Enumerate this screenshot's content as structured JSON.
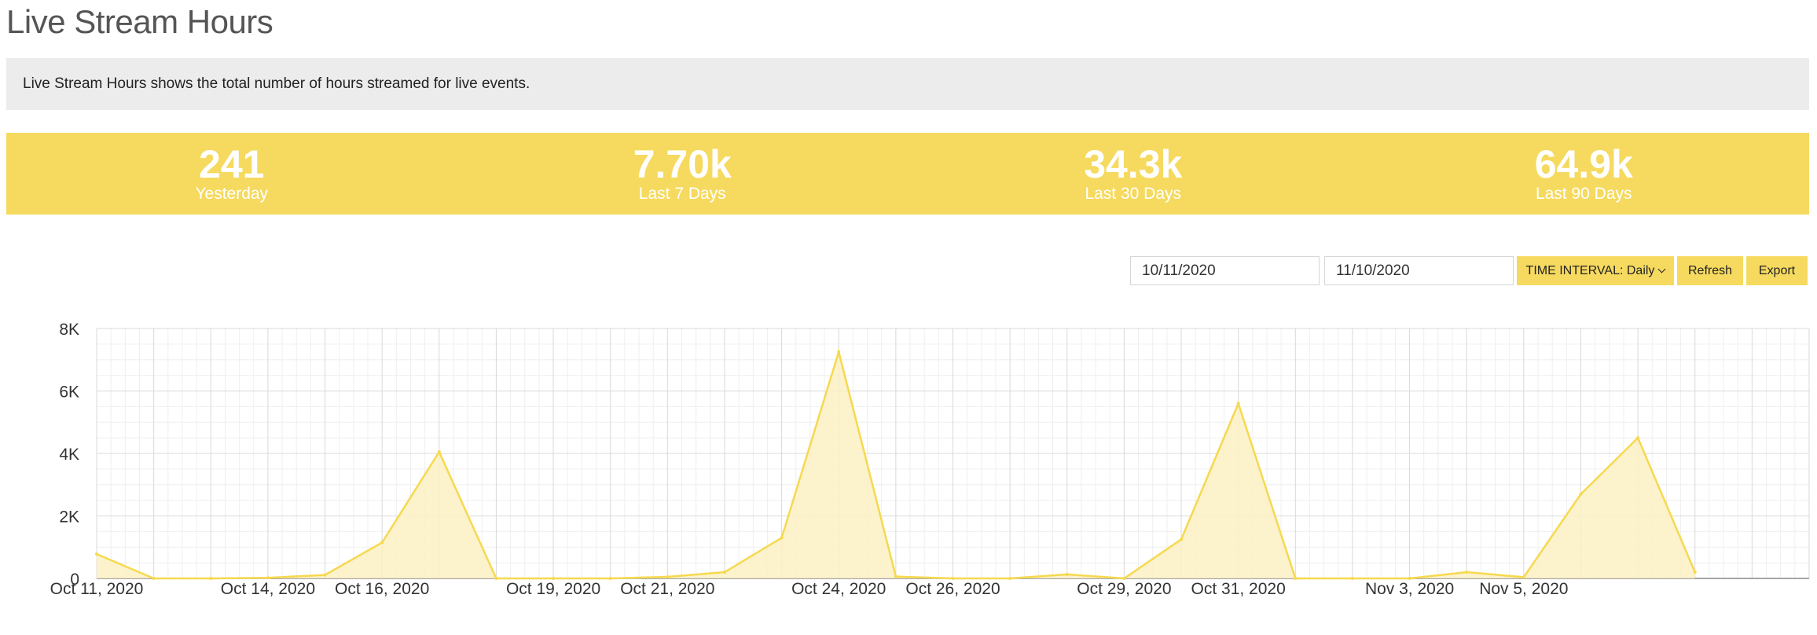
{
  "page": {
    "title": "Live Stream Hours",
    "description": "Live Stream Hours shows the total number of hours streamed for live events."
  },
  "stats": [
    {
      "value": "241",
      "label": "Yesterday"
    },
    {
      "value": "7.70k",
      "label": "Last 7 Days"
    },
    {
      "value": "34.3k",
      "label": "Last 30 Days"
    },
    {
      "value": "64.9k",
      "label": "Last 90 Days"
    }
  ],
  "controls": {
    "start_date": "10/11/2020",
    "end_date": "11/10/2020",
    "interval_label": "TIME INTERVAL: Daily",
    "refresh_label": "Refresh",
    "export_label": "Export"
  },
  "colors": {
    "accent": "#f6da5f",
    "line": "#f6d94e",
    "fill": "#fbf0c3"
  },
  "chart_data": {
    "type": "area",
    "title": "",
    "xlabel": "",
    "ylabel": "",
    "ylim": [
      0,
      8000
    ],
    "yticks": [
      {
        "value": 0,
        "label": "0"
      },
      {
        "value": 2000,
        "label": "2K"
      },
      {
        "value": 4000,
        "label": "4K"
      },
      {
        "value": 6000,
        "label": "6K"
      },
      {
        "value": 8000,
        "label": "8K"
      }
    ],
    "xlim": [
      "2020-10-11",
      "2020-11-10"
    ],
    "xticks": [
      {
        "date": "2020-10-11",
        "label": "Oct 11, 2020"
      },
      {
        "date": "2020-10-14",
        "label": "Oct 14, 2020"
      },
      {
        "date": "2020-10-16",
        "label": "Oct 16, 2020"
      },
      {
        "date": "2020-10-19",
        "label": "Oct 19, 2020"
      },
      {
        "date": "2020-10-21",
        "label": "Oct 21, 2020"
      },
      {
        "date": "2020-10-24",
        "label": "Oct 24, 2020"
      },
      {
        "date": "2020-10-26",
        "label": "Oct 26, 2020"
      },
      {
        "date": "2020-10-29",
        "label": "Oct 29, 2020"
      },
      {
        "date": "2020-10-31",
        "label": "Oct 31, 2020"
      },
      {
        "date": "2020-11-03",
        "label": "Nov 3, 2020"
      },
      {
        "date": "2020-11-05",
        "label": "Nov 5, 2020"
      }
    ],
    "grid": true,
    "legend": "none",
    "x": [
      "2020-10-11",
      "2020-10-12",
      "2020-10-13",
      "2020-10-14",
      "2020-10-15",
      "2020-10-16",
      "2020-10-17",
      "2020-10-18",
      "2020-10-19",
      "2020-10-20",
      "2020-10-21",
      "2020-10-22",
      "2020-10-23",
      "2020-10-24",
      "2020-10-25",
      "2020-10-26",
      "2020-10-27",
      "2020-10-28",
      "2020-10-29",
      "2020-10-30",
      "2020-10-31",
      "2020-11-01",
      "2020-11-02",
      "2020-11-03",
      "2020-11-04",
      "2020-11-05",
      "2020-11-06",
      "2020-11-07",
      "2020-11-08"
    ],
    "values": [
      780,
      0,
      0,
      20,
      110,
      1150,
      4050,
      0,
      0,
      0,
      50,
      200,
      1300,
      7250,
      60,
      0,
      0,
      130,
      0,
      1250,
      5600,
      0,
      0,
      0,
      200,
      40,
      2700,
      4500,
      200
    ]
  }
}
